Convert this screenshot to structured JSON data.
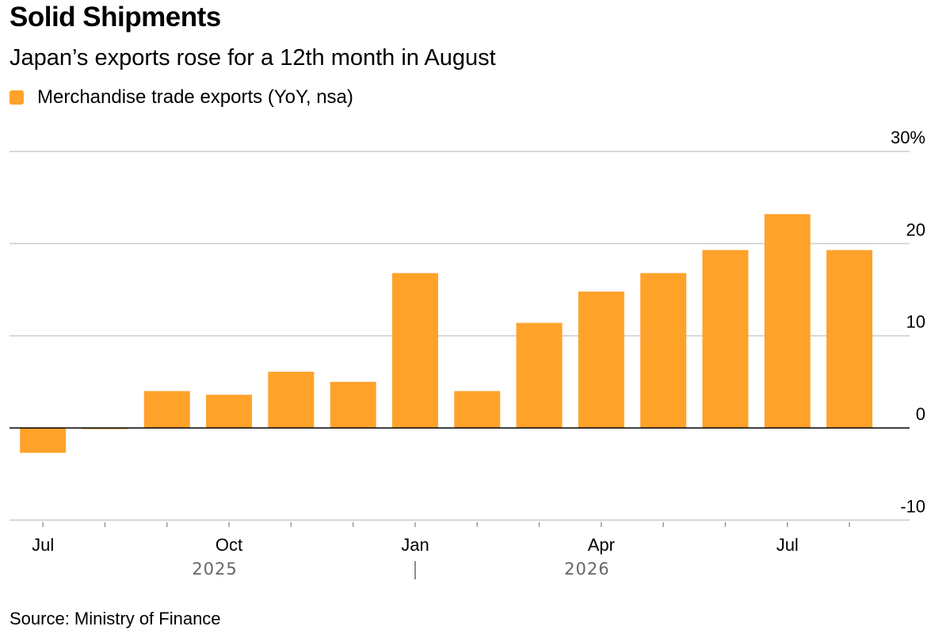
{
  "title": "Solid Shipments",
  "subtitle": "Japan’s exports rose for a 12th month in August",
  "source": "Source: Ministry of Finance",
  "colors": {
    "bar": "#FFA22A",
    "grid": "#CCCCCC",
    "axis": "#000000",
    "year_label": "#666666"
  },
  "chart_data": {
    "type": "bar",
    "legend": [
      {
        "name": "Merchandise trade exports (YoY, nsa)",
        "color": "#FFA22A"
      }
    ],
    "legend_position": "top-left",
    "grid": true,
    "y_axis_side": "right",
    "ylim": [
      -10,
      30
    ],
    "y_ticks": [
      {
        "value": 30,
        "label": "30%"
      },
      {
        "value": 20,
        "label": "20"
      },
      {
        "value": 10,
        "label": "10"
      },
      {
        "value": 0,
        "label": "0"
      },
      {
        "value": -10,
        "label": "-10"
      }
    ],
    "categories": [
      "2025-07",
      "2025-08",
      "2025-09",
      "2025-10",
      "2025-11",
      "2025-12",
      "2026-01",
      "2026-02",
      "2026-03",
      "2026-04",
      "2026-05",
      "2026-06",
      "2026-07",
      "2026-08"
    ],
    "series": [
      {
        "name": "Merchandise trade exports (YoY, nsa)",
        "values": [
          -2.7,
          -0.1,
          4.0,
          3.6,
          6.1,
          5.0,
          16.8,
          4.0,
          11.4,
          14.8,
          16.8,
          19.3,
          23.2,
          19.3
        ]
      }
    ],
    "x_tick_labels": [
      {
        "index": 0,
        "label": "Jul"
      },
      {
        "index": 3,
        "label": "Oct"
      },
      {
        "index": 6,
        "label": "Jan"
      },
      {
        "index": 9,
        "label": "Apr"
      },
      {
        "index": 12,
        "label": "Jul"
      }
    ],
    "year_labels": [
      {
        "label": "2025",
        "center_index": 3
      },
      {
        "label": "2026",
        "center_index": 9
      }
    ],
    "year_divider_index": 6
  }
}
